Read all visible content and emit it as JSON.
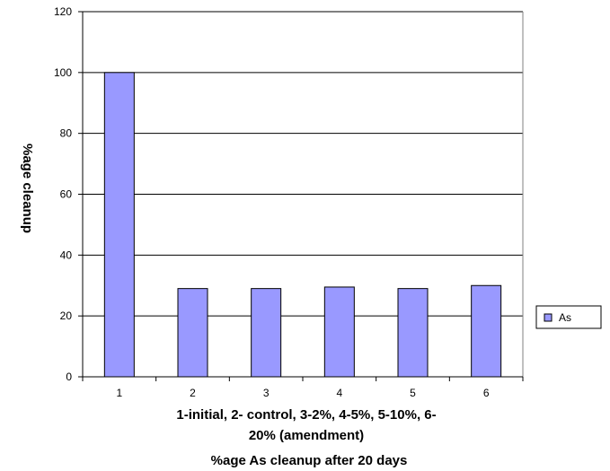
{
  "chart_data": {
    "type": "bar",
    "categories": [
      "1",
      "2",
      "3",
      "4",
      "5",
      "6"
    ],
    "series": [
      {
        "name": "As",
        "values": [
          100,
          29,
          29,
          29.5,
          29,
          30
        ]
      }
    ],
    "xlabel_lines": [
      "1-initial, 2- control, 3-2%, 4-5%, 5-10%, 6-",
      "20% (amendment)"
    ],
    "ylabel": "%age cleanup",
    "caption": "%age As cleanup after 20 days",
    "ylim": [
      0,
      120
    ],
    "yticks": [
      0,
      20,
      40,
      60,
      80,
      100,
      120
    ],
    "grid": true,
    "legend_position": "right",
    "colors": {
      "bar_fill": "#9999ff",
      "bar_stroke": "#000000",
      "grid": "#000000",
      "background": "#ffffff"
    }
  }
}
